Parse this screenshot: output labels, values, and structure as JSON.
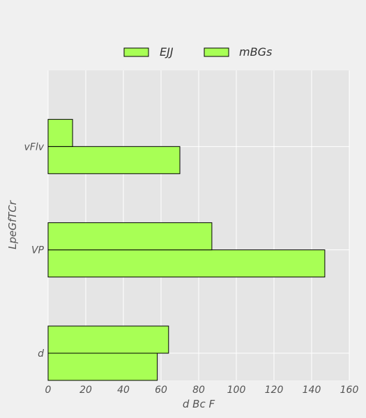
{
  "chart_data": {
    "type": "bar",
    "orientation": "horizontal",
    "categories": [
      "d",
      "VP",
      "vFlv"
    ],
    "series": [
      {
        "name": "EJJ",
        "values": [
          58,
          147,
          70
        ],
        "color": "#a8ff55"
      },
      {
        "name": "mBGs",
        "values": [
          64,
          87,
          13
        ],
        "color": "#a8ff55"
      }
    ],
    "xlabel": "d Bc F",
    "ylabel": "LpeGfTCr",
    "xlim": [
      0,
      160
    ],
    "xticks": [
      0,
      20,
      40,
      60,
      80,
      100,
      120,
      140,
      160
    ],
    "grid": true,
    "legend_position": "top-center",
    "plot_background": "#e5e5e5",
    "page_background": "#f0f0f0",
    "grid_color": "#ffffff",
    "bar_edge_color": "#000000"
  }
}
